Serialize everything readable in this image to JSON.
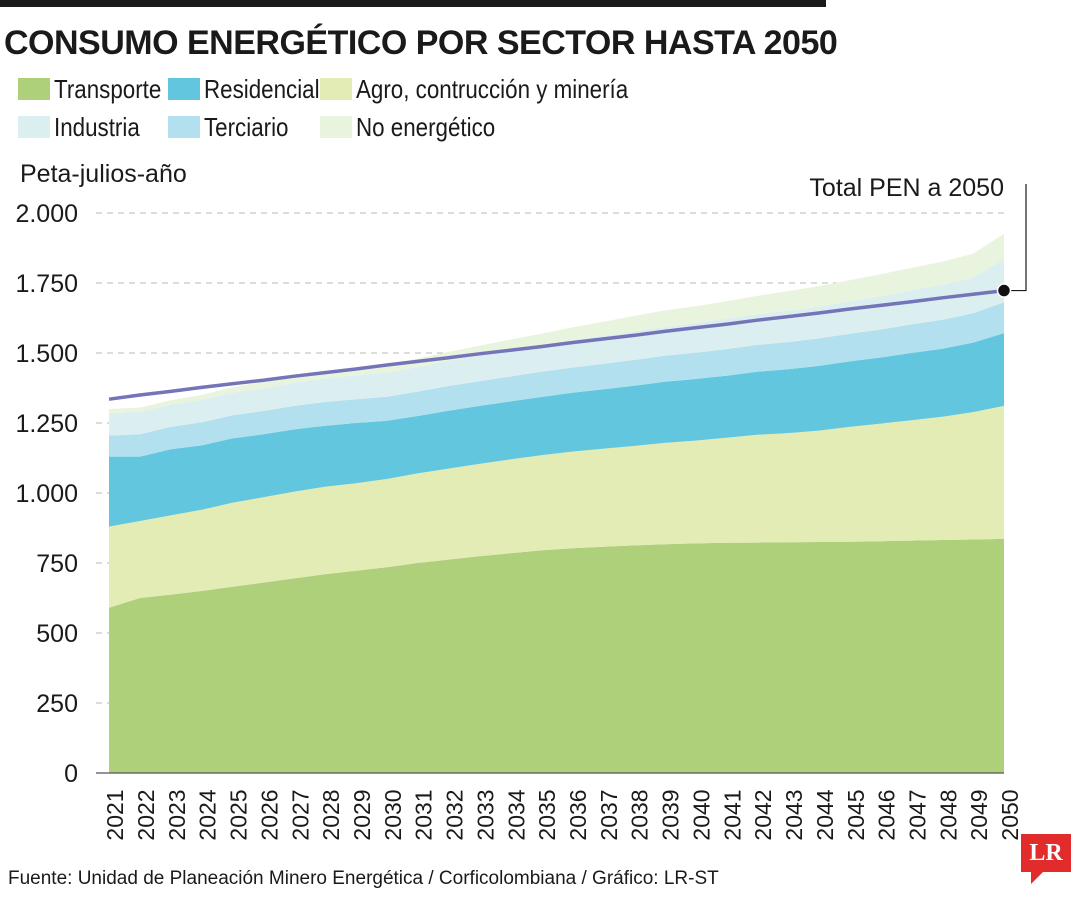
{
  "title": "CONSUMO ENERGÉTICO POR SECTOR HASTA 2050",
  "source": "Fuente: Unidad de Planeación Minero Energética / Corficolombiana / Gráfico: LR-ST",
  "logo_text": "LR",
  "colors": {
    "transporte": "#aed07b",
    "agro": "#e3ecb4",
    "residencial": "#62c7de",
    "terciario": "#b2e0ee",
    "industria": "#dceff0",
    "no_energetico": "#e9f4de",
    "total_pen": "#7474b8",
    "logo": "#e22b2b"
  },
  "legend": [
    {
      "key": "transporte",
      "label": "Transporte"
    },
    {
      "key": "residencial",
      "label": "Residencial"
    },
    {
      "key": "agro",
      "label": "Agro, contrucción y minería"
    },
    {
      "key": "industria",
      "label": "Industria"
    },
    {
      "key": "terciario",
      "label": "Terciario"
    },
    {
      "key": "no_energetico",
      "label": "No energético"
    }
  ],
  "chart_data": {
    "type": "area",
    "stacked": true,
    "title": "CONSUMO ENERGÉTICO POR SECTOR HASTA 2050",
    "ylabel": "Peta-julios-año",
    "xlabel": "",
    "ylim": [
      0,
      2000
    ],
    "yticks": [
      0,
      250,
      500,
      750,
      1000,
      1250,
      1500,
      1750,
      2000
    ],
    "ytick_labels": [
      "0",
      "250",
      "500",
      "750",
      "1.000",
      "1.250",
      "1.500",
      "1.750",
      "2.000"
    ],
    "grid": true,
    "categories": [
      "2021",
      "2022",
      "2023",
      "2024",
      "2025",
      "2026",
      "2027",
      "2028",
      "2029",
      "2030",
      "2031",
      "2032",
      "2033",
      "2034",
      "2035",
      "2036",
      "2037",
      "2038",
      "2039",
      "2040",
      "2041",
      "2042",
      "2043",
      "2044",
      "2045",
      "2046",
      "2047",
      "2048",
      "2049",
      "2050"
    ],
    "series": [
      {
        "name": "Transporte",
        "key": "transporte",
        "values": [
          590,
          625,
          637,
          650,
          665,
          680,
          695,
          710,
          722,
          735,
          750,
          762,
          774,
          785,
          795,
          803,
          808,
          813,
          817,
          820,
          822,
          823,
          824,
          825,
          826,
          828,
          830,
          832,
          834,
          836
        ]
      },
      {
        "name": "Agro, contrucción y minería",
        "key": "agro",
        "values": [
          290,
          275,
          283,
          290,
          300,
          305,
          310,
          312,
          313,
          315,
          320,
          325,
          330,
          335,
          340,
          345,
          350,
          355,
          362,
          367,
          375,
          385,
          390,
          398,
          410,
          420,
          430,
          440,
          455,
          475
        ]
      },
      {
        "name": "Residencial",
        "key": "residencial",
        "values": [
          250,
          230,
          236,
          230,
          230,
          225,
          222,
          218,
          215,
          208,
          205,
          207,
          207,
          207,
          208,
          210,
          212,
          215,
          218,
          220,
          222,
          225,
          228,
          231,
          234,
          236,
          240,
          243,
          248,
          260
        ]
      },
      {
        "name": "Terciario",
        "key": "terciario",
        "values": [
          75,
          80,
          80,
          82,
          83,
          83,
          84,
          85,
          85,
          86,
          87,
          88,
          88,
          89,
          90,
          90,
          91,
          92,
          93,
          94,
          95,
          96,
          97,
          98,
          99,
          100,
          102,
          104,
          105,
          110
        ]
      },
      {
        "name": "Industria",
        "key": "industria",
        "values": [
          80,
          80,
          80,
          80,
          80,
          82,
          83,
          84,
          85,
          86,
          88,
          90,
          92,
          94,
          96,
          98,
          100,
          102,
          104,
          106,
          108,
          110,
          112,
          114,
          116,
          119,
          122,
          125,
          128,
          155
        ]
      },
      {
        "name": "No energético",
        "key": "no_energetico",
        "values": [
          15,
          15,
          15,
          18,
          20,
          23,
          25,
          27,
          28,
          30,
          30,
          32,
          35,
          38,
          40,
          45,
          50,
          55,
          58,
          60,
          63,
          65,
          70,
          73,
          75,
          78,
          80,
          82,
          85,
          90
        ]
      }
    ],
    "line": {
      "name": "Total PEN",
      "key": "total_pen",
      "values": [
        1335,
        1350,
        1363,
        1377,
        1390,
        1403,
        1417,
        1430,
        1443,
        1457,
        1470,
        1483,
        1497,
        1510,
        1523,
        1537,
        1550,
        1563,
        1577,
        1590,
        1603,
        1617,
        1630,
        1643,
        1657,
        1670,
        1683,
        1697,
        1710,
        1723
      ]
    },
    "annotation": "Total PEN a 2050"
  }
}
